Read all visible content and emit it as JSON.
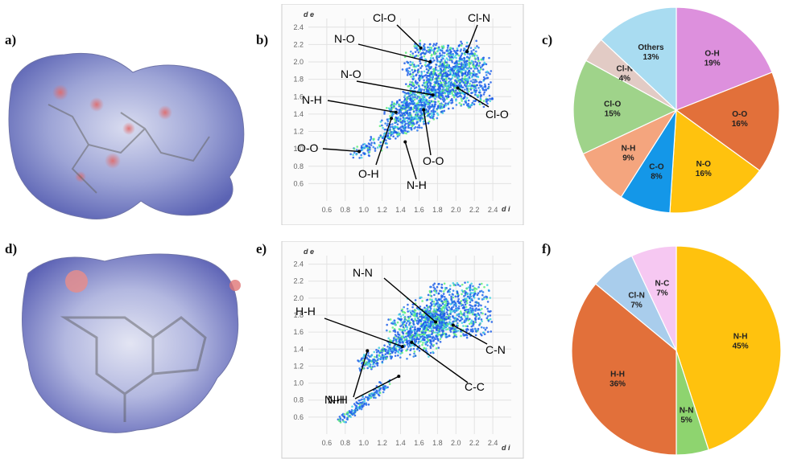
{
  "panels": {
    "a": "a)",
    "b": "b)",
    "c": "c)",
    "d": "d)",
    "e": "e)",
    "f": "f)"
  },
  "colors": {
    "surface_blue": "#7b86c9",
    "surface_white": "#e8eaf6",
    "surface_red": "#e88a8a",
    "fp_blue": "#1f5ee8",
    "fp_cyan": "#3fd1e0",
    "fp_green": "#5ff07a",
    "axis": "#777777"
  },
  "chart_data": [
    {
      "panel": "b",
      "type": "scatter",
      "xlabel": "d i",
      "ylabel": "d e",
      "x_ticks": [
        "0.6",
        "0.8",
        "1.0",
        "1.2",
        "1.4",
        "1.6",
        "1.8",
        "2.0",
        "2.2",
        "2.4"
      ],
      "y_ticks": [
        "2.4",
        "2.2",
        "2.0",
        "1.8",
        "1.6",
        "1.4",
        "1.2",
        "1.0",
        "0.8",
        "0.6"
      ],
      "xlim": [
        0.4,
        2.6
      ],
      "ylim": [
        0.4,
        2.5
      ],
      "annotations": [
        {
          "text": "Cl-O",
          "x": 1.62,
          "y": 2.16
        },
        {
          "text": "Cl-N",
          "x": 2.12,
          "y": 2.12
        },
        {
          "text": "N-O",
          "x": 1.72,
          "y": 2.0
        },
        {
          "text": "N-O",
          "x": 1.75,
          "y": 1.62
        },
        {
          "text": "N-H",
          "x": 1.35,
          "y": 1.42
        },
        {
          "text": "Cl-O",
          "x": 2.02,
          "y": 1.7
        },
        {
          "text": "O-O",
          "x": 0.95,
          "y": 0.97
        },
        {
          "text": "O-H",
          "x": 1.3,
          "y": 1.35
        },
        {
          "text": "O-O",
          "x": 1.65,
          "y": 1.45
        },
        {
          "text": "N-H",
          "x": 1.45,
          "y": 1.08
        }
      ]
    },
    {
      "panel": "c",
      "type": "pie",
      "labels": [
        "O-H",
        "O-O",
        "N-O",
        "C-O",
        "N-H",
        "Cl-O",
        "Cl-N",
        "Others"
      ],
      "values": [
        19,
        16,
        16,
        8,
        9,
        15,
        4,
        13
      ],
      "display": [
        "19%",
        "16%",
        "16%",
        "8%",
        "9%",
        "15%",
        "4%",
        "13%"
      ],
      "colors": [
        "#dd90dd",
        "#e2703a",
        "#ffc20e",
        "#1497e8",
        "#f4a57e",
        "#9fd38a",
        "#e2cbc5",
        "#a9dcf1"
      ]
    },
    {
      "panel": "e",
      "type": "scatter",
      "xlabel": "d i",
      "ylabel": "d e",
      "x_ticks": [
        "0.6",
        "0.8",
        "1.0",
        "1.2",
        "1.4",
        "1.6",
        "1.8",
        "2.0",
        "2.2",
        "2.4"
      ],
      "y_ticks": [
        "2.4",
        "2.2",
        "2.0",
        "1.8",
        "1.6",
        "1.4",
        "1.2",
        "1.0",
        "0.8",
        "0.6"
      ],
      "xlim": [
        0.4,
        2.6
      ],
      "ylim": [
        0.4,
        2.5
      ],
      "annotations": [
        {
          "text": "N-N",
          "x": 1.78,
          "y": 1.72
        },
        {
          "text": "H-H",
          "x": 1.42,
          "y": 1.43
        },
        {
          "text": "C-N",
          "x": 1.97,
          "y": 1.68
        },
        {
          "text": "C-C",
          "x": 1.52,
          "y": 1.48
        },
        {
          "text": "N-H",
          "x": 1.04,
          "y": 1.38
        },
        {
          "text": "N-H",
          "x": 1.38,
          "y": 1.08
        }
      ]
    },
    {
      "panel": "f",
      "type": "pie",
      "labels": [
        "N-H",
        "N-N",
        "H-H",
        "Cl-N",
        "N-C"
      ],
      "values": [
        45,
        5,
        36,
        7,
        7
      ],
      "display": [
        "45%",
        "5%",
        "36%",
        "7%",
        "7%"
      ],
      "colors": [
        "#ffc20e",
        "#8ed46f",
        "#e2703a",
        "#a9cdec",
        "#f6c8f2"
      ]
    }
  ]
}
